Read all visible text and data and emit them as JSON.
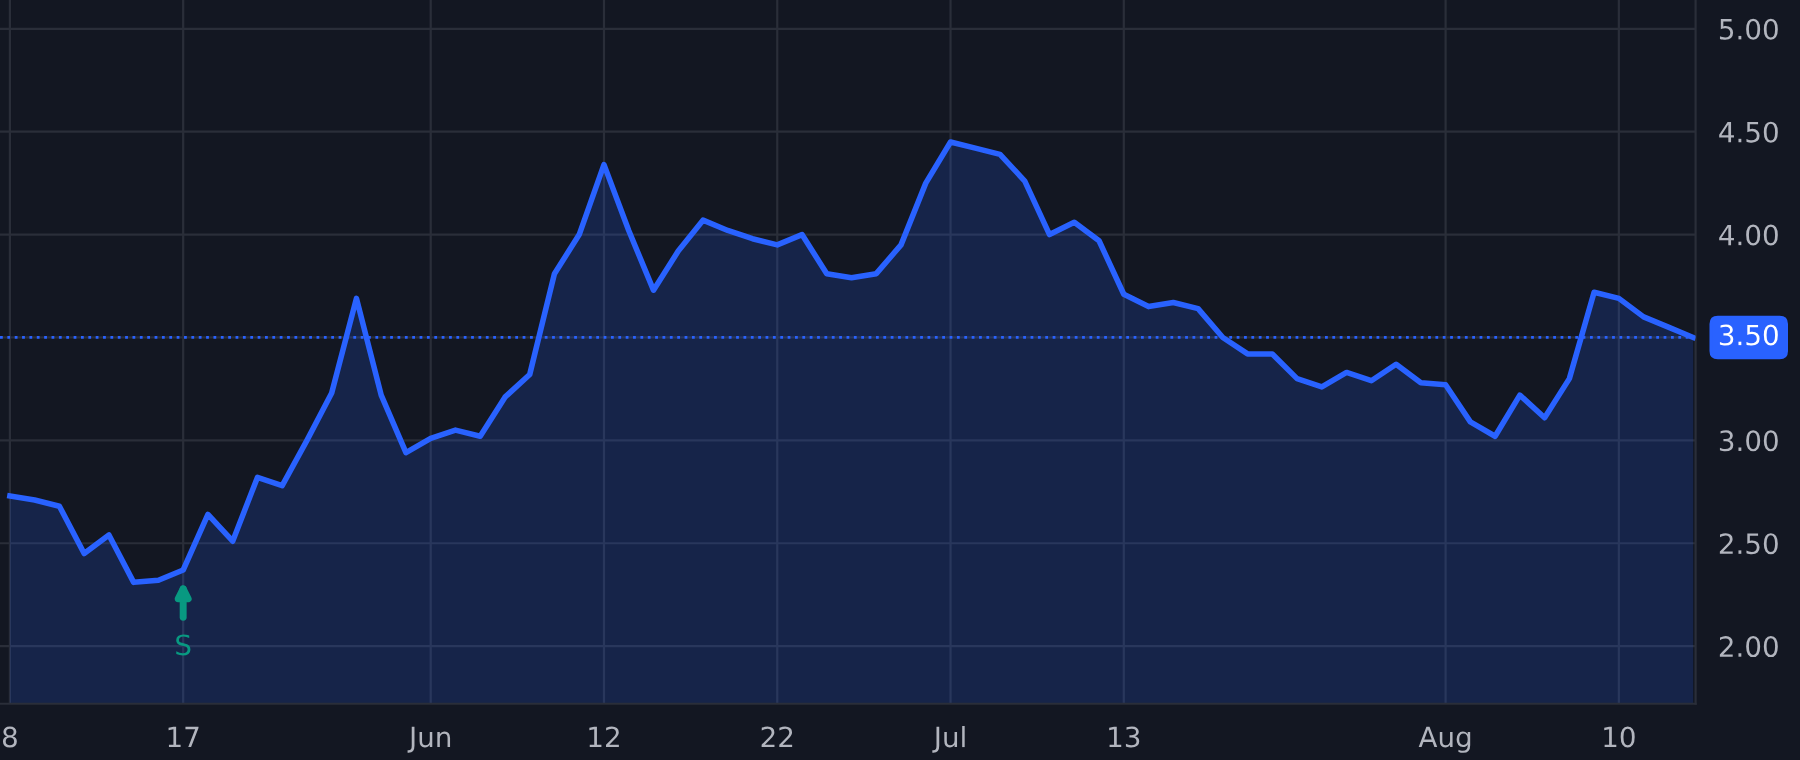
{
  "chart_data": {
    "type": "area",
    "categories": [
      "8",
      null,
      null,
      null,
      null,
      null,
      null,
      "17",
      null,
      null,
      null,
      null,
      null,
      null,
      null,
      null,
      null,
      "Jun",
      null,
      null,
      null,
      null,
      null,
      null,
      "12",
      null,
      null,
      null,
      null,
      null,
      null,
      "22",
      null,
      null,
      null,
      null,
      null,
      null,
      "Jul",
      null,
      null,
      null,
      null,
      null,
      null,
      "13",
      null,
      null,
      null,
      null,
      null,
      null,
      null,
      null,
      null,
      null,
      null,
      null,
      "Aug",
      null,
      null,
      null,
      null,
      null,
      null,
      "10",
      null,
      null,
      null
    ],
    "series": [
      {
        "color": "#2962ff",
        "values": [
          2.73,
          2.71,
          2.68,
          2.45,
          2.54,
          2.31,
          2.32,
          2.37,
          2.64,
          2.51,
          2.82,
          2.78,
          3.0,
          3.23,
          3.69,
          3.22,
          2.94,
          3.01,
          3.05,
          3.02,
          3.21,
          3.32,
          3.81,
          4.0,
          4.34,
          4.02,
          3.73,
          3.92,
          4.07,
          4.02,
          3.98,
          3.95,
          4.0,
          3.81,
          3.79,
          3.81,
          3.95,
          4.25,
          4.45,
          4.42,
          4.39,
          4.26,
          4.0,
          4.06,
          3.97,
          3.71,
          3.65,
          3.67,
          3.64,
          3.5,
          3.42,
          3.42,
          3.3,
          3.26,
          3.33,
          3.29,
          3.37,
          3.28,
          3.27,
          3.09,
          3.02,
          3.22,
          3.11,
          3.3,
          3.72,
          3.69,
          3.6,
          3.55,
          3.5
        ]
      }
    ],
    "ylim": [
      1.72,
      5.14
    ],
    "yticks": [
      {
        "value": 2,
        "label": "2.00"
      },
      {
        "value": 2.5,
        "label": "2.50"
      },
      {
        "value": 3,
        "label": "3.00"
      },
      {
        "value": 3.5,
        "label": "3.50"
      },
      {
        "value": 4,
        "label": "4.00"
      },
      {
        "value": 4.5,
        "label": "4.50"
      },
      {
        "value": 5,
        "label": "5.00"
      }
    ],
    "grid": true,
    "ref_lines": [
      {
        "axis": "y",
        "value": 3.5,
        "label": "3.50",
        "color": "#2962ff",
        "line_style": "dotted"
      }
    ],
    "annotations": [
      {
        "text": "S",
        "x": "17",
        "y": 2.37
      }
    ]
  }
}
